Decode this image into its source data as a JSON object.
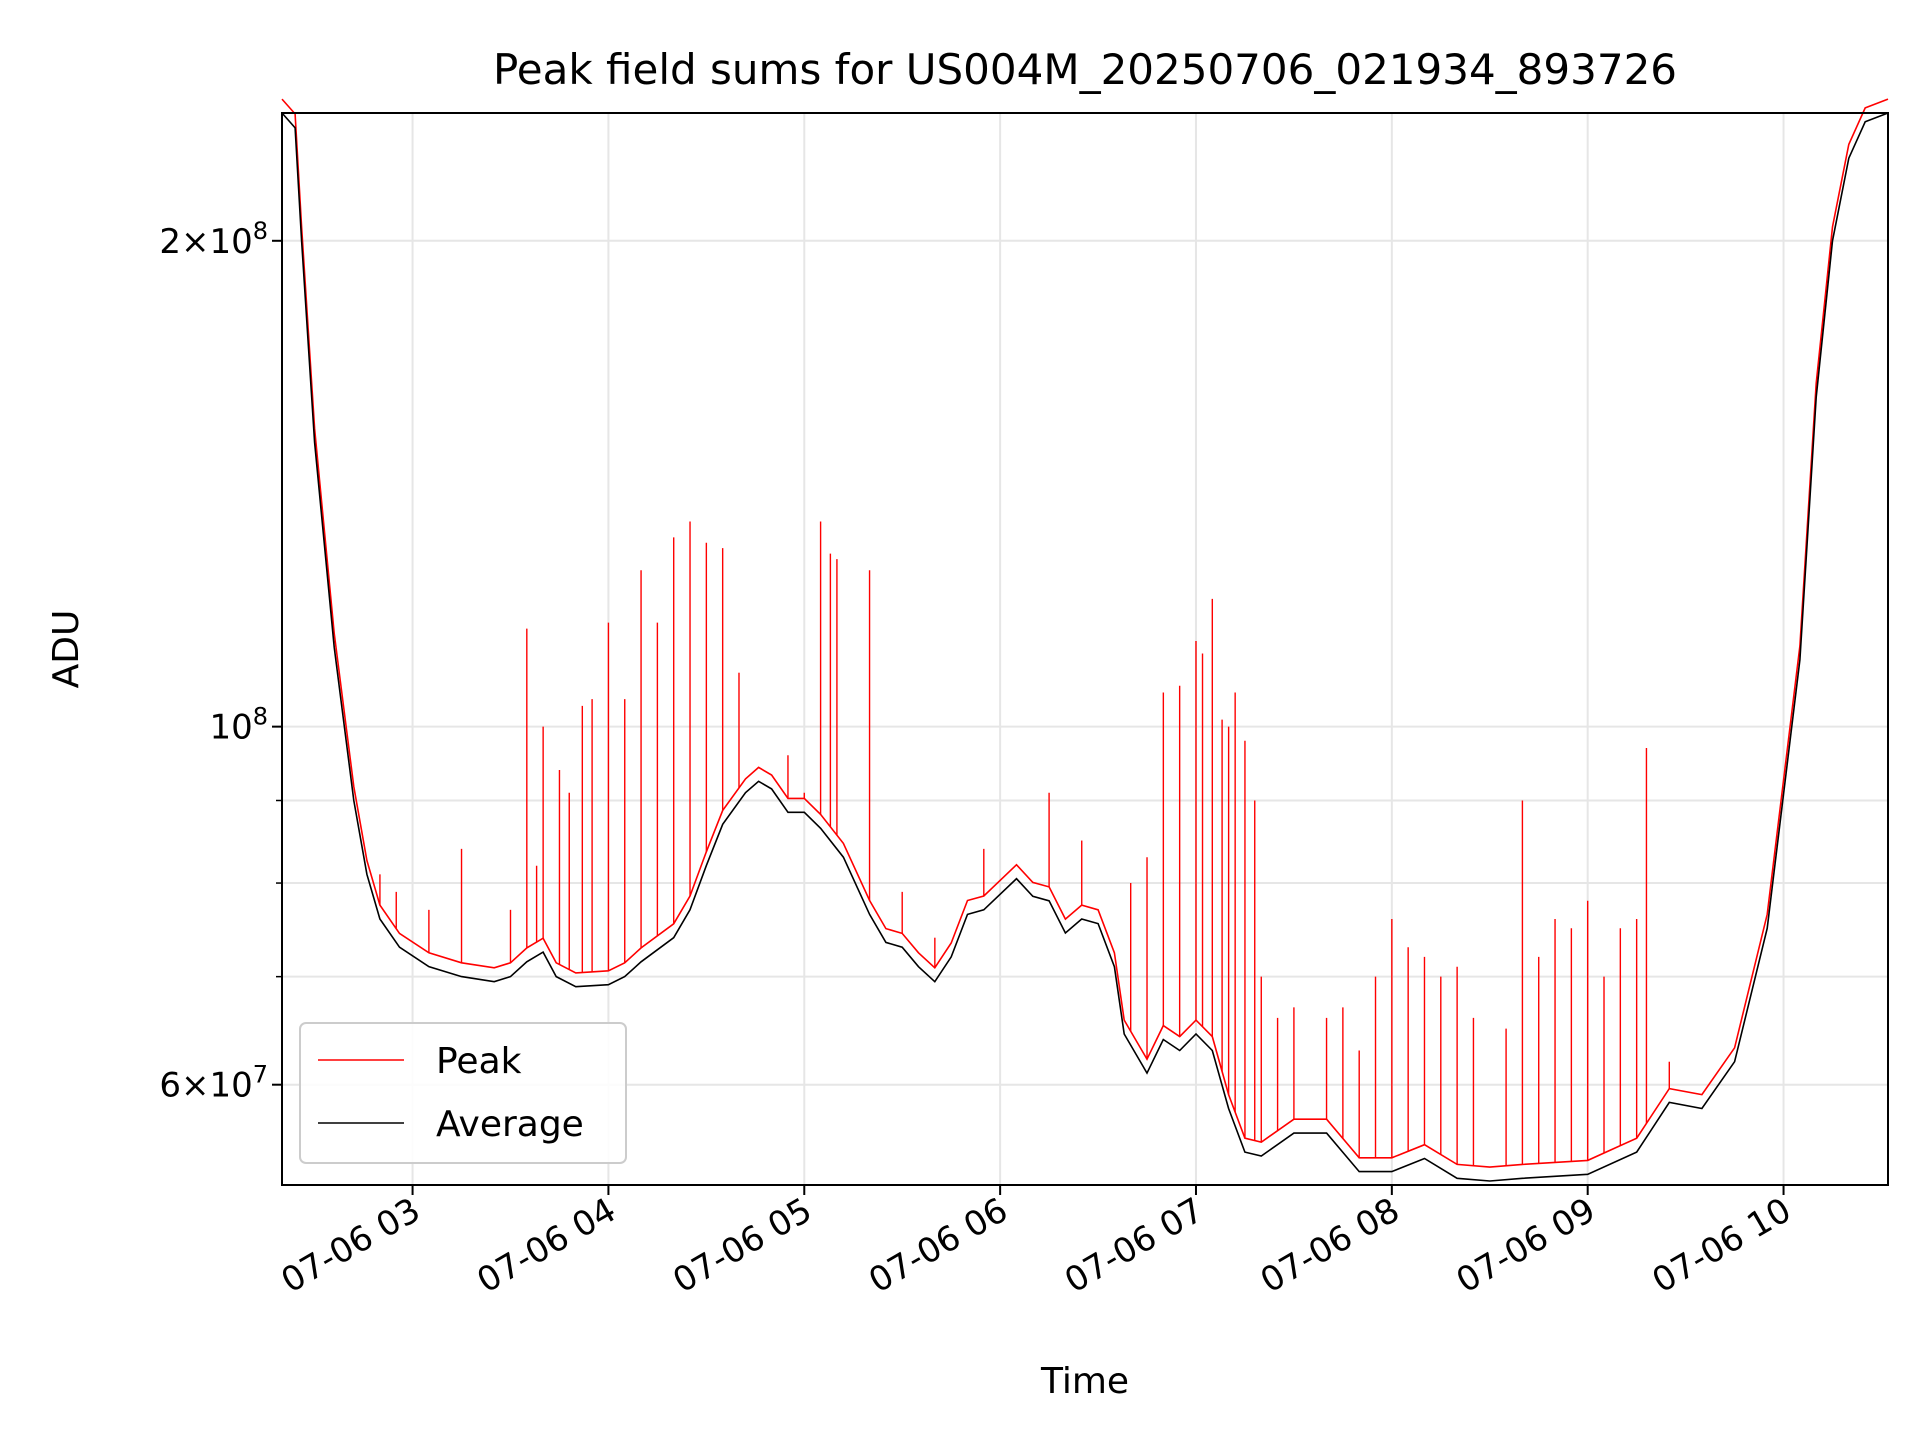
{
  "chart_data": {
    "type": "line",
    "title": "Peak field sums for US004M_20250706_021934_893726",
    "xlabel": "Time",
    "ylabel": "ADU",
    "x_scale": "time",
    "y_scale": "log",
    "xlim": [
      "2025-07-06 02:20",
      "2025-07-06 10:32"
    ],
    "ylim": [
      52000000,
      240000000
    ],
    "grid": true,
    "legend_position": "lower-left",
    "x_ticks": [
      {
        "value": "2025-07-06 03:00",
        "label": "07-06 03"
      },
      {
        "value": "2025-07-06 04:00",
        "label": "07-06 04"
      },
      {
        "value": "2025-07-06 05:00",
        "label": "07-06 05"
      },
      {
        "value": "2025-07-06 06:00",
        "label": "07-06 06"
      },
      {
        "value": "2025-07-06 07:00",
        "label": "07-06 07"
      },
      {
        "value": "2025-07-06 08:00",
        "label": "07-06 08"
      },
      {
        "value": "2025-07-06 09:00",
        "label": "07-06 09"
      },
      {
        "value": "2025-07-06 10:00",
        "label": "07-06 10"
      }
    ],
    "y_ticks": [
      {
        "value": 200000000,
        "base": "2",
        "exp": "8"
      },
      {
        "value": 100000000,
        "base": "",
        "exp": "8"
      },
      {
        "value": 60000000,
        "base": "6",
        "exp": "7"
      }
    ],
    "y_minor_ticks": [
      90000000,
      80000000,
      70000000
    ],
    "series": [
      {
        "name": "Average",
        "color": "#000000",
        "points": [
          [
            "2025-07-06 02:20",
            240000000
          ],
          [
            "2025-07-06 02:24",
            235000000
          ],
          [
            "2025-07-06 02:26",
            200000000
          ],
          [
            "2025-07-06 02:30",
            150000000
          ],
          [
            "2025-07-06 02:36",
            112000000
          ],
          [
            "2025-07-06 02:42",
            90000000
          ],
          [
            "2025-07-06 02:46",
            81000000
          ],
          [
            "2025-07-06 02:50",
            76000000
          ],
          [
            "2025-07-06 02:56",
            73000000
          ],
          [
            "2025-07-06 03:05",
            71000000
          ],
          [
            "2025-07-06 03:15",
            70000000
          ],
          [
            "2025-07-06 03:25",
            69500000
          ],
          [
            "2025-07-06 03:30",
            70000000
          ],
          [
            "2025-07-06 03:35",
            71500000
          ],
          [
            "2025-07-06 03:40",
            72500000
          ],
          [
            "2025-07-06 03:44",
            70000000
          ],
          [
            "2025-07-06 03:50",
            69000000
          ],
          [
            "2025-07-06 04:00",
            69200000
          ],
          [
            "2025-07-06 04:05",
            70000000
          ],
          [
            "2025-07-06 04:10",
            71500000
          ],
          [
            "2025-07-06 04:20",
            74000000
          ],
          [
            "2025-07-06 04:25",
            77000000
          ],
          [
            "2025-07-06 04:30",
            82000000
          ],
          [
            "2025-07-06 04:35",
            87000000
          ],
          [
            "2025-07-06 04:42",
            91000000
          ],
          [
            "2025-07-06 04:46",
            92500000
          ],
          [
            "2025-07-06 04:50",
            91500000
          ],
          [
            "2025-07-06 04:55",
            88500000
          ],
          [
            "2025-07-06 05:00",
            88500000
          ],
          [
            "2025-07-06 05:05",
            86500000
          ],
          [
            "2025-07-06 05:12",
            83000000
          ],
          [
            "2025-07-06 05:20",
            76500000
          ],
          [
            "2025-07-06 05:25",
            73500000
          ],
          [
            "2025-07-06 05:30",
            73000000
          ],
          [
            "2025-07-06 05:35",
            71000000
          ],
          [
            "2025-07-06 05:40",
            69500000
          ],
          [
            "2025-07-06 05:45",
            72000000
          ],
          [
            "2025-07-06 05:50",
            76500000
          ],
          [
            "2025-07-06 05:55",
            77000000
          ],
          [
            "2025-07-06 06:05",
            80500000
          ],
          [
            "2025-07-06 06:10",
            78500000
          ],
          [
            "2025-07-06 06:15",
            78000000
          ],
          [
            "2025-07-06 06:20",
            74500000
          ],
          [
            "2025-07-06 06:25",
            76000000
          ],
          [
            "2025-07-06 06:30",
            75500000
          ],
          [
            "2025-07-06 06:35",
            71000000
          ],
          [
            "2025-07-06 06:38",
            64500000
          ],
          [
            "2025-07-06 06:45",
            61000000
          ],
          [
            "2025-07-06 06:50",
            64000000
          ],
          [
            "2025-07-06 06:55",
            63000000
          ],
          [
            "2025-07-06 07:00",
            64500000
          ],
          [
            "2025-07-06 07:05",
            63000000
          ],
          [
            "2025-07-06 07:10",
            58000000
          ],
          [
            "2025-07-06 07:15",
            54500000
          ],
          [
            "2025-07-06 07:20",
            54200000
          ],
          [
            "2025-07-06 07:30",
            56000000
          ],
          [
            "2025-07-06 07:40",
            56000000
          ],
          [
            "2025-07-06 07:50",
            53000000
          ],
          [
            "2025-07-06 08:00",
            53000000
          ],
          [
            "2025-07-06 08:10",
            54000000
          ],
          [
            "2025-07-06 08:20",
            52500000
          ],
          [
            "2025-07-06 08:30",
            52300000
          ],
          [
            "2025-07-06 08:40",
            52500000
          ],
          [
            "2025-07-06 09:00",
            52800000
          ],
          [
            "2025-07-06 09:15",
            54500000
          ],
          [
            "2025-07-06 09:25",
            58500000
          ],
          [
            "2025-07-06 09:35",
            58000000
          ],
          [
            "2025-07-06 09:45",
            62000000
          ],
          [
            "2025-07-06 09:55",
            75000000
          ],
          [
            "2025-07-06 10:05",
            110000000
          ],
          [
            "2025-07-06 10:10",
            160000000
          ],
          [
            "2025-07-06 10:15",
            200000000
          ],
          [
            "2025-07-06 10:20",
            225000000
          ],
          [
            "2025-07-06 10:25",
            237000000
          ],
          [
            "2025-07-06 10:32",
            240000000
          ]
        ]
      },
      {
        "name": "Peak",
        "color": "#ff0000",
        "spikes": [
          [
            "2025-07-06 02:50",
            81000000
          ],
          [
            "2025-07-06 02:55",
            79000000
          ],
          [
            "2025-07-06 03:05",
            77000000
          ],
          [
            "2025-07-06 03:15",
            84000000
          ],
          [
            "2025-07-06 03:30",
            77000000
          ],
          [
            "2025-07-06 03:35",
            115000000
          ],
          [
            "2025-07-06 03:38",
            82000000
          ],
          [
            "2025-07-06 03:40",
            100000000
          ],
          [
            "2025-07-06 03:45",
            94000000
          ],
          [
            "2025-07-06 03:48",
            91000000
          ],
          [
            "2025-07-06 03:52",
            103000000
          ],
          [
            "2025-07-06 03:55",
            104000000
          ],
          [
            "2025-07-06 04:00",
            116000000
          ],
          [
            "2025-07-06 04:05",
            104000000
          ],
          [
            "2025-07-06 04:10",
            125000000
          ],
          [
            "2025-07-06 04:15",
            116000000
          ],
          [
            "2025-07-06 04:20",
            131000000
          ],
          [
            "2025-07-06 04:25",
            134000000
          ],
          [
            "2025-07-06 04:30",
            130000000
          ],
          [
            "2025-07-06 04:35",
            129000000
          ],
          [
            "2025-07-06 04:40",
            108000000
          ],
          [
            "2025-07-06 04:55",
            96000000
          ],
          [
            "2025-07-06 05:00",
            91000000
          ],
          [
            "2025-07-06 05:05",
            134000000
          ],
          [
            "2025-07-06 05:08",
            128000000
          ],
          [
            "2025-07-06 05:10",
            127000000
          ],
          [
            "2025-07-06 05:20",
            125000000
          ],
          [
            "2025-07-06 05:30",
            79000000
          ],
          [
            "2025-07-06 05:40",
            74000000
          ],
          [
            "2025-07-06 05:55",
            84000000
          ],
          [
            "2025-07-06 06:15",
            91000000
          ],
          [
            "2025-07-06 06:25",
            85000000
          ],
          [
            "2025-07-06 06:40",
            80000000
          ],
          [
            "2025-07-06 06:45",
            83000000
          ],
          [
            "2025-07-06 06:50",
            105000000
          ],
          [
            "2025-07-06 06:55",
            106000000
          ],
          [
            "2025-07-06 07:00",
            113000000
          ],
          [
            "2025-07-06 07:02",
            111000000
          ],
          [
            "2025-07-06 07:05",
            120000000
          ],
          [
            "2025-07-06 07:08",
            101000000
          ],
          [
            "2025-07-06 07:10",
            100000000
          ],
          [
            "2025-07-06 07:12",
            105000000
          ],
          [
            "2025-07-06 07:15",
            98000000
          ],
          [
            "2025-07-06 07:18",
            90000000
          ],
          [
            "2025-07-06 07:20",
            70000000
          ],
          [
            "2025-07-06 07:25",
            66000000
          ],
          [
            "2025-07-06 07:30",
            67000000
          ],
          [
            "2025-07-06 07:40",
            66000000
          ],
          [
            "2025-07-06 07:45",
            67000000
          ],
          [
            "2025-07-06 07:50",
            63000000
          ],
          [
            "2025-07-06 07:55",
            70000000
          ],
          [
            "2025-07-06 08:00",
            76000000
          ],
          [
            "2025-07-06 08:05",
            73000000
          ],
          [
            "2025-07-06 08:10",
            72000000
          ],
          [
            "2025-07-06 08:15",
            70000000
          ],
          [
            "2025-07-06 08:20",
            71000000
          ],
          [
            "2025-07-06 08:25",
            66000000
          ],
          [
            "2025-07-06 08:35",
            65000000
          ],
          [
            "2025-07-06 08:40",
            90000000
          ],
          [
            "2025-07-06 08:45",
            72000000
          ],
          [
            "2025-07-06 08:50",
            76000000
          ],
          [
            "2025-07-06 08:55",
            75000000
          ],
          [
            "2025-07-06 09:00",
            78000000
          ],
          [
            "2025-07-06 09:05",
            70000000
          ],
          [
            "2025-07-06 09:10",
            75000000
          ],
          [
            "2025-07-06 09:15",
            76000000
          ],
          [
            "2025-07-06 09:18",
            97000000
          ],
          [
            "2025-07-06 09:25",
            62000000
          ]
        ]
      }
    ]
  }
}
